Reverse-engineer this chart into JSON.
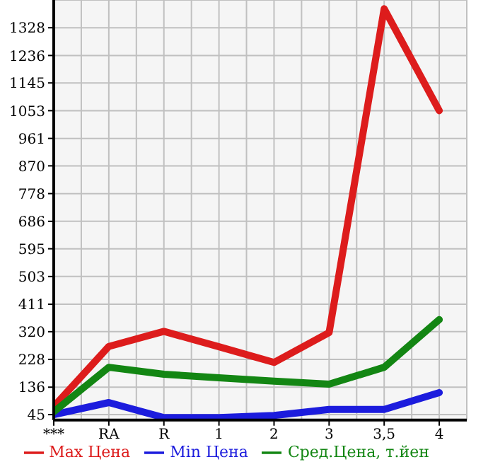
{
  "chart_data": {
    "type": "line",
    "categories": [
      "***",
      "RA",
      "R",
      "1",
      "2",
      "3",
      "3,5",
      "4"
    ],
    "series": [
      {
        "name": "Max Цена",
        "color": "#dd1c1c",
        "values": [
          72,
          271,
          321,
          270,
          218,
          317,
          1391,
          1053
        ]
      },
      {
        "name": "Min Цена",
        "color": "#1c1cdd",
        "values": [
          45,
          85,
          35,
          35,
          42,
          62,
          62,
          118
        ]
      },
      {
        "name": "Сред.Цена, т.йен",
        "color": "#138613",
        "values": [
          54,
          202,
          179,
          167,
          156,
          146,
          202,
          360
        ]
      }
    ],
    "ylim": [
      27,
      1420
    ],
    "yticks": [
      45,
      136,
      228,
      320,
      411,
      503,
      595,
      686,
      778,
      870,
      961,
      1053,
      1145,
      1236,
      1328
    ],
    "grid": true,
    "legend": "bottom",
    "marker": "none",
    "line_style": "solid"
  }
}
